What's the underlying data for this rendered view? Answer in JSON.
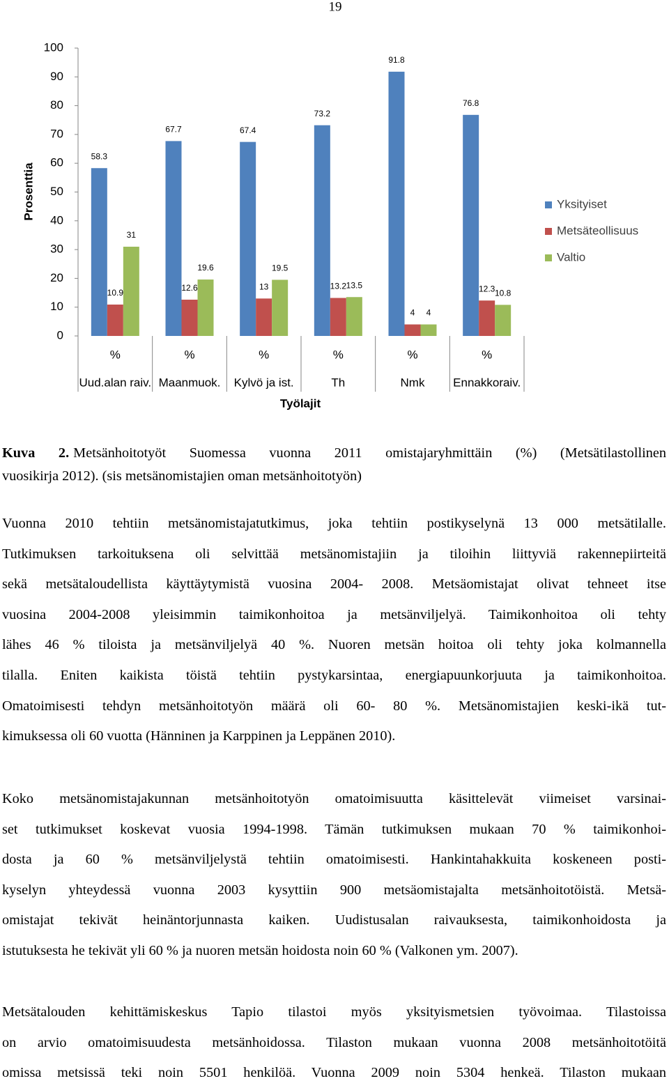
{
  "page_number": "19",
  "chart_data": {
    "type": "bar",
    "y_label": "Prosenttia",
    "x_label": "Työlajit",
    "categories": [
      [
        "%",
        "Uud.alan raiv."
      ],
      [
        "%",
        "Maanmuok."
      ],
      [
        "%",
        "Kylvö ja ist."
      ],
      [
        "%",
        "Th"
      ],
      [
        "%",
        "Nmk"
      ],
      [
        "%",
        "Ennakkoraiv."
      ]
    ],
    "series": [
      {
        "name": "Yksityiset",
        "color": "#4f81bd",
        "values": [
          58.3,
          67.7,
          67.4,
          73.2,
          91.8,
          76.8
        ]
      },
      {
        "name": "Metsäteollisuus",
        "color": "#c0504d",
        "values": [
          10.9,
          12.6,
          13,
          13.2,
          4,
          12.3
        ]
      },
      {
        "name": "Valtio",
        "color": "#9bbb59",
        "values": [
          31,
          19.6,
          19.5,
          13.5,
          4,
          10.8
        ]
      }
    ],
    "ylim": [
      0,
      100
    ],
    "yticks": [
      0,
      10,
      20,
      30,
      40,
      50,
      60,
      70,
      80,
      90,
      100
    ],
    "grid": false,
    "legend": "right",
    "value_labels_shown": true
  },
  "caption": {
    "label": "Kuva 2.",
    "lines": [
      "Metsänhoitotyöt Suomessa vuonna 2011 omistajaryhmittäin (%) (Metsätilastollinen",
      "vuosikirja 2012). (sis metsänomistajien oman metsänhoitotyön)"
    ]
  },
  "paragraphs": [
    [
      "Vuonna 2010 tehtiin metsänomistajatutkimus, joka tehtiin postikyselynä 13 000 metsätilalle.",
      "Tutkimuksen tarkoituksena oli selvittää metsänomistajiin ja tiloihin liittyviä rakennepiirteitä",
      "sekä metsätaloudellista käyttäytymistä vuosina 2004- 2008. Metsäomistajat olivat tehneet itse",
      "vuosina 2004-2008 yleisimmin taimikonhoitoa ja metsänviljelyä. Taimikonhoitoa oli tehty",
      "lähes 46 % tiloista ja metsänviljelyä 40 %. Nuoren metsän hoitoa oli tehty joka kolmannella",
      "tilalla. Eniten kaikista töistä tehtiin pystykarsintaa, energiapuunkorjuuta ja taimikonhoitoa.",
      "Omatoimisesti tehdyn metsänhoitotyön määrä oli 60- 80 %.  Metsänomistajien keski-ikä tut-",
      "kimuksessa oli 60 vuotta (Hänninen ja Karppinen ja Leppänen 2010)."
    ],
    [
      "Koko metsänomistajakunnan metsänhoitotyön omatoimisuutta käsittelevät viimeiset varsinai-",
      "set tutkimukset koskevat vuosia 1994-1998. Tämän tutkimuksen mukaan 70 % taimikonhoi-",
      "dosta ja 60 % metsänviljelystä tehtiin omatoimisesti. Hankintahakkuita koskeneen posti-",
      "kyselyn yhteydessä vuonna 2003 kysyttiin 900 metsäomistajalta metsänhoitotöistä. Metsä-",
      "omistajat tekivät heinäntorjunnasta kaiken. Uudistusalan raivauksesta, taimikonhoidosta ja",
      "istutuksesta he tekivät yli 60 % ja nuoren metsän hoidosta noin 60 % (Valkonen ym. 2007)."
    ],
    [
      "Metsätalouden kehittämiskeskus Tapio tilastoi myös yksityismetsien työvoimaa. Tilastoissa",
      "on arvio omatoimisuudesta metsänhoidossa. Tilaston mukaan vuonna 2008 metsänhoitotöitä",
      "omissa metsissä teki noin 5501 henkilöä. Vuonna 2009 noin 5304 henkeä. Tilaston mukaan"
    ]
  ]
}
